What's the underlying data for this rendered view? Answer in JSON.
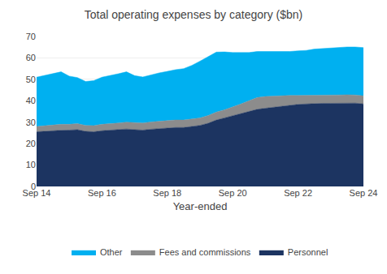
{
  "chart_data": {
    "type": "area",
    "stacked": true,
    "title": "Total operating expenses by category ($bn)",
    "xlabel": "Year-ended",
    "categories": [
      "Sep 14",
      null,
      null,
      null,
      null,
      null,
      null,
      null,
      "Sep 16",
      null,
      null,
      null,
      null,
      null,
      null,
      null,
      "Sep 18",
      null,
      null,
      null,
      null,
      null,
      null,
      null,
      "Sep 20",
      null,
      null,
      null,
      null,
      null,
      null,
      null,
      "Sep 22",
      null,
      null,
      null,
      null,
      null,
      null,
      null,
      "Sep 24"
    ],
    "series": [
      {
        "name": "Personnel",
        "color": "#1c3461",
        "values": [
          25.5,
          25.8,
          26.0,
          26.2,
          26.3,
          26.5,
          25.7,
          25.5,
          26.0,
          26.2,
          26.5,
          26.8,
          26.5,
          26.3,
          26.7,
          27.0,
          27.2,
          27.5,
          27.5,
          28.0,
          28.5,
          29.5,
          31.0,
          32.0,
          33.0,
          34.0,
          35.0,
          36.0,
          36.5,
          37.0,
          37.5,
          38.0,
          38.3,
          38.5,
          38.7,
          38.8,
          38.8,
          38.9,
          39.0,
          38.9,
          38.5
        ]
      },
      {
        "name": "Fees and commissions",
        "color": "#8c8c8c",
        "values": [
          2.5,
          2.6,
          2.7,
          2.8,
          2.7,
          2.8,
          2.8,
          2.9,
          3.0,
          3.0,
          3.1,
          3.2,
          3.2,
          3.3,
          3.4,
          3.5,
          3.5,
          3.5,
          3.5,
          3.5,
          3.5,
          3.6,
          3.7,
          3.8,
          4.0,
          4.5,
          5.0,
          5.5,
          5.5,
          5.2,
          5.0,
          4.5,
          4.2,
          4.0,
          3.9,
          3.8,
          3.8,
          3.8,
          3.8,
          3.8,
          3.8
        ]
      },
      {
        "name": "Other",
        "color": "#00b0f0",
        "values": [
          23.0,
          23.5,
          24.0,
          24.5,
          22.5,
          21.5,
          20.5,
          21.0,
          22.0,
          22.5,
          23.0,
          23.5,
          22.0,
          21.5,
          22.0,
          22.5,
          23.0,
          23.5,
          24.0,
          25.0,
          26.5,
          27.5,
          28.0,
          27.0,
          25.5,
          24.0,
          22.5,
          21.5,
          21.0,
          20.8,
          20.5,
          20.5,
          20.8,
          21.0,
          21.5,
          21.8,
          22.0,
          22.2,
          22.3,
          22.4,
          22.5
        ]
      }
    ],
    "ylim": [
      0,
      70
    ],
    "yticks": [
      0,
      10,
      20,
      30,
      40,
      50,
      60,
      70
    ],
    "grid": true,
    "legend": "bottom"
  }
}
